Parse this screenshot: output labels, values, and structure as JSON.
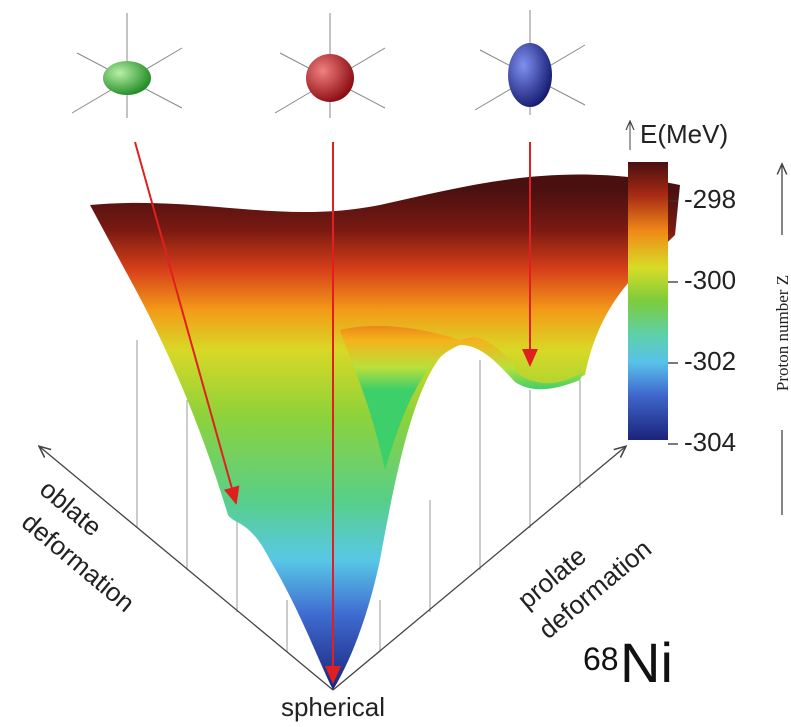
{
  "colorbar": {
    "label": "E(MeV)",
    "ticks": [
      -298,
      -300,
      -302,
      -304
    ]
  },
  "axes": {
    "left": [
      "oblate",
      "deformation"
    ],
    "right": [
      "prolate",
      "deformation"
    ],
    "bottom": "spherical",
    "side": "Proton number Z"
  },
  "nucleus": {
    "mass_number": "68",
    "symbol": "Ni"
  }
}
